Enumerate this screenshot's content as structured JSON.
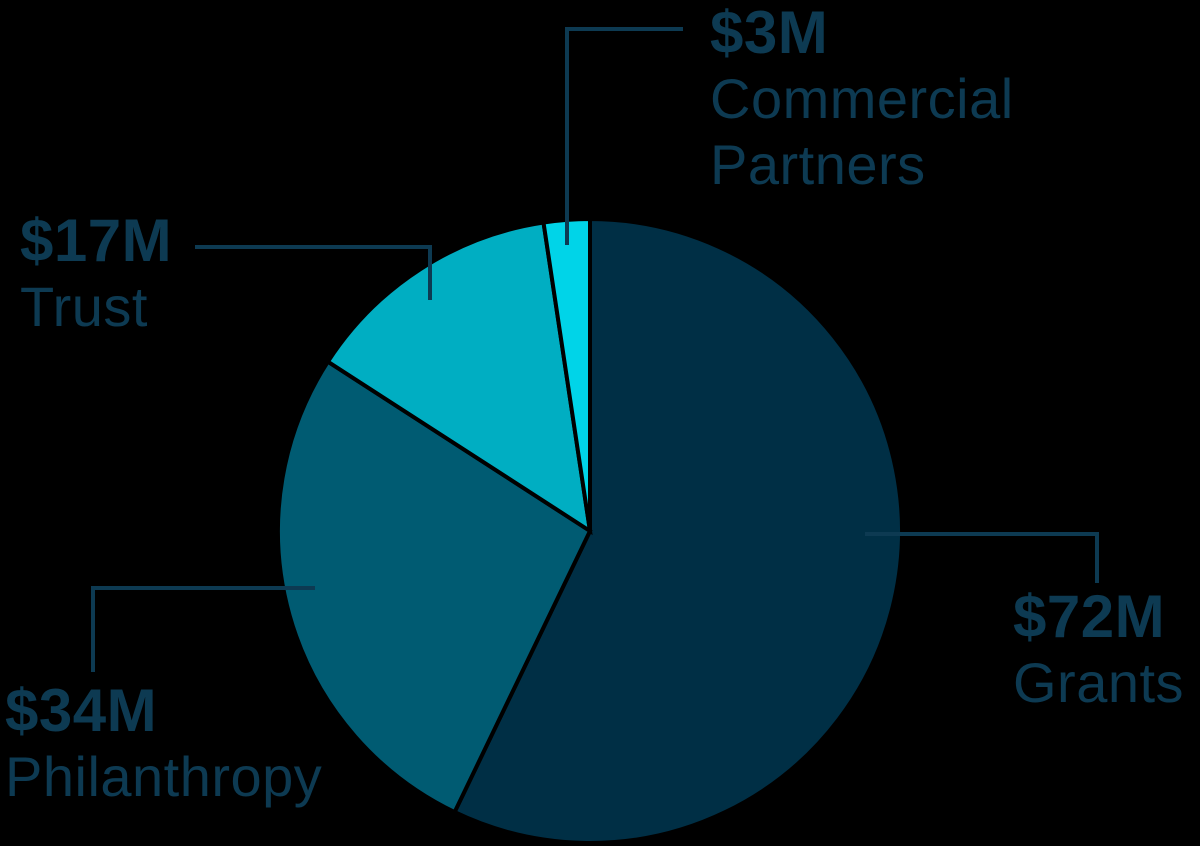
{
  "chart_data": {
    "type": "pie",
    "slices": [
      {
        "label": "Grants",
        "value": 72,
        "value_label": "$72M",
        "color": "#002f45"
      },
      {
        "label": "Philanthropy",
        "value": 34,
        "value_label": "$34M",
        "color": "#005b72"
      },
      {
        "label": "Trust",
        "value": 17,
        "value_label": "$17M",
        "color": "#00aec2"
      },
      {
        "label": "Commercial Partners",
        "value": 3,
        "value_label": "$3M",
        "color": "#00d4e8"
      }
    ],
    "direction": "clockwise",
    "start_angle_deg": 0,
    "label_color": "#0d3a52",
    "leader_line_color": "#0d3a52",
    "slice_separator_color": "#000000",
    "background_color": "#000000",
    "legend_position": "callout-labels"
  }
}
